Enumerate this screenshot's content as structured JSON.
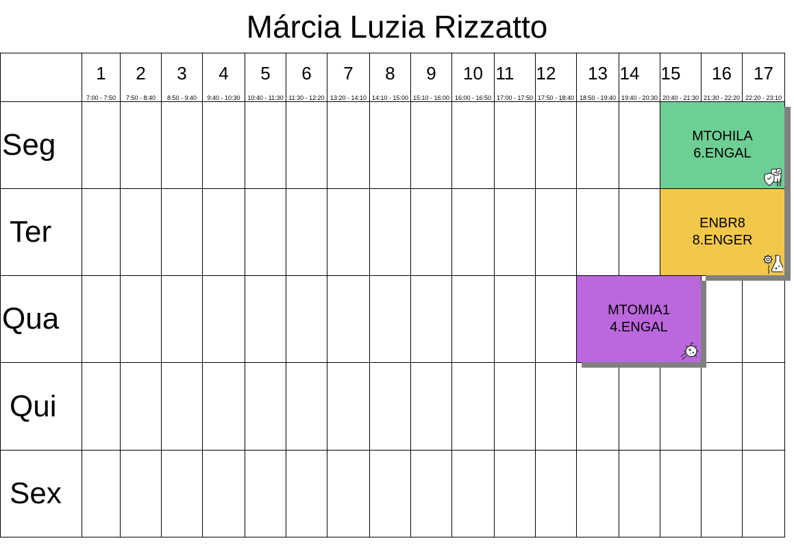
{
  "title": "Márcia Luzia Rizzatto",
  "periods": [
    {
      "number": "1",
      "time": "7:00 - 7:50"
    },
    {
      "number": "2",
      "time": "7:50 - 8:40"
    },
    {
      "number": "3",
      "time": "8:50 - 9:40"
    },
    {
      "number": "4",
      "time": "9:40 - 10:30"
    },
    {
      "number": "5",
      "time": "10:40 - 11:30"
    },
    {
      "number": "6",
      "time": "11:30 - 12:20"
    },
    {
      "number": "7",
      "time": "13:20 - 14:10"
    },
    {
      "number": "8",
      "time": "14:10 - 15:00"
    },
    {
      "number": "9",
      "time": "15:10 - 16:00"
    },
    {
      "number": "10",
      "time": "16:00 - 16:50"
    },
    {
      "number": "11",
      "time": "17:00 - 17:50"
    },
    {
      "number": "12",
      "time": "17:50 - 18:40"
    },
    {
      "number": "13",
      "time": "18:50 - 19:40"
    },
    {
      "number": "14",
      "time": "19:40 - 20:30"
    },
    {
      "number": "15",
      "time": "20:40 - 21:30"
    },
    {
      "number": "16",
      "time": "21:30 - 22:20"
    },
    {
      "number": "17",
      "time": "22:20 - 23:10"
    }
  ],
  "days": [
    "Seg",
    "Ter",
    "Qua",
    "Qui",
    "Sex"
  ],
  "classes": [
    {
      "code": "MTOHILA",
      "group": "6.ENGAL",
      "day": "Seg",
      "periods": "15-16",
      "color": "#6dcf94",
      "icon": "food-safety-icon"
    },
    {
      "code": "ENBR8",
      "group": "8.ENGER",
      "day": "Ter",
      "periods": "15-16",
      "color": "#f2c84b",
      "icon": "lab-gear-icon"
    },
    {
      "code": "MTOMIA1",
      "group": "4.ENGAL",
      "day": "Qua",
      "periods": "13-15",
      "color": "#bb68dd",
      "icon": "microbe-icon"
    }
  ]
}
